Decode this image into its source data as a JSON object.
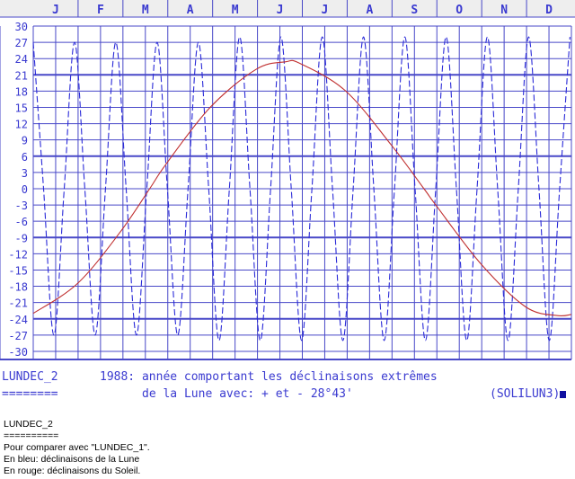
{
  "chart_data": {
    "type": "line",
    "months": [
      "J",
      "F",
      "M",
      "A",
      "M",
      "J",
      "J",
      "A",
      "S",
      "O",
      "N",
      "D"
    ],
    "y_ticks": [
      30,
      27,
      24,
      21,
      18,
      15,
      12,
      9,
      6,
      3,
      0,
      -3,
      -6,
      -9,
      -12,
      -15,
      -18,
      -21,
      -24,
      -27,
      -30
    ],
    "ylim": [
      -31.5,
      30
    ],
    "x_unit": "day of year 1988",
    "xlim": [
      1,
      366
    ],
    "grid": true,
    "series": [
      {
        "color": "#2a2ad8",
        "dashed": true,
        "x": [
          1,
          8,
          15,
          22,
          29,
          36,
          43,
          50,
          57,
          64,
          71,
          78,
          85,
          92,
          99,
          106,
          113,
          120,
          127,
          134,
          141,
          148,
          155,
          162,
          169,
          176,
          183,
          190,
          197,
          204,
          211,
          218,
          225,
          232,
          239,
          246,
          253,
          260,
          267,
          274,
          281,
          288,
          295,
          302,
          309,
          316,
          323,
          330,
          337,
          344,
          351,
          358,
          365
        ],
        "values": [
          27,
          0,
          -27,
          0,
          27,
          0,
          -27,
          0,
          27,
          0,
          -27,
          0,
          27,
          0,
          -27,
          0,
          27,
          0,
          -28,
          0,
          28,
          0,
          -28,
          0,
          28,
          0,
          -28,
          0,
          28,
          0,
          -28,
          0,
          28,
          0,
          -28,
          0,
          28,
          0,
          -28,
          0,
          28,
          0,
          -28,
          0,
          28,
          0,
          -28,
          0,
          28,
          0,
          -28,
          0,
          28
        ]
      },
      {
        "color": "#c03030",
        "dashed": false,
        "x": [
          1,
          31,
          60,
          80,
          91,
          121,
          152,
          172,
          182,
          213,
          244,
          266,
          274,
          305,
          335,
          356,
          366
        ],
        "values": [
          -23,
          -17.5,
          -8,
          0,
          4.5,
          15,
          22,
          23.4,
          23.1,
          18,
          8,
          0,
          -3,
          -14,
          -21.8,
          -23.4,
          -23.2
        ]
      }
    ]
  },
  "status_line": {
    "program": "LUNDEC_2",
    "underline": "========",
    "title_1": "1988: année comportant les déclinaisons extrêmes",
    "title_2": "de la Lune avec: + et - 28°43'",
    "tag": "(SOLILUN3)"
  },
  "caption": {
    "name": "LUNDEC_2",
    "underline": "==========",
    "line_compare": "Pour comparer avec \"LUNDEC_1\".",
    "line_blue": "En bleu: déclinaisons de la Lune",
    "line_red": "En rouge: déclinaisons du Soleil."
  },
  "colors": {
    "grid": "#4848c8",
    "axis_text": "#3a3ad0",
    "moon": "#2a2ad8",
    "sun": "#c03030",
    "month_bar": "#eeeeee"
  }
}
